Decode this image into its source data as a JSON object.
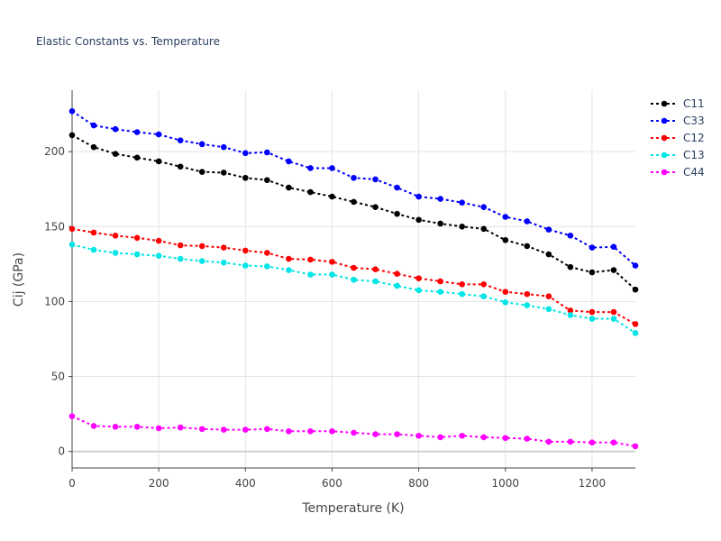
{
  "chart_data": {
    "type": "line",
    "title": "Elastic Constants vs. Temperature",
    "xlabel": "Temperature (K)",
    "ylabel": "Cij (GPa)",
    "xlim": [
      0,
      1300
    ],
    "ylim": [
      -11,
      241
    ],
    "xticks": [
      0,
      200,
      400,
      600,
      800,
      1000,
      1200
    ],
    "yticks": [
      0,
      50,
      100,
      150,
      200
    ],
    "grid": true,
    "legend_position": "top-right",
    "x": [
      0,
      50,
      100,
      150,
      200,
      250,
      300,
      350,
      400,
      450,
      500,
      550,
      600,
      650,
      700,
      750,
      800,
      850,
      900,
      950,
      1000,
      1050,
      1100,
      1150,
      1200,
      1250,
      1300
    ],
    "series": [
      {
        "name": "C11",
        "color": "#000000",
        "values": [
          211,
          203,
          198.5,
          196,
          193.5,
          190,
          186.5,
          186,
          182.5,
          181,
          176,
          173,
          170,
          166.5,
          163,
          158.5,
          154.5,
          152,
          150,
          148.5,
          141,
          137,
          131.5,
          123,
          119.5,
          121,
          108
        ]
      },
      {
        "name": "C33",
        "color": "#0000ff",
        "values": [
          227,
          217.5,
          215,
          213,
          211.5,
          207.5,
          205,
          203,
          199,
          199.5,
          193.5,
          189,
          189,
          182.5,
          181.5,
          176,
          170,
          168.5,
          166,
          163,
          156.5,
          153.5,
          148,
          144,
          136,
          136.5,
          124
        ]
      },
      {
        "name": "C12",
        "color": "#ff0000",
        "values": [
          148.5,
          146,
          144,
          142.5,
          140.5,
          137.5,
          137,
          136,
          134,
          132.5,
          128.5,
          128,
          126.5,
          122.5,
          121.5,
          118.5,
          115.5,
          113.5,
          111.5,
          111.5,
          106.5,
          105,
          103.5,
          94,
          93,
          93,
          85
        ]
      },
      {
        "name": "C13",
        "color": "#00e5e5",
        "values": [
          138,
          134.5,
          132.5,
          131.5,
          130.5,
          128.5,
          127,
          126,
          124,
          123.5,
          121,
          118,
          118,
          114.5,
          113.5,
          110.5,
          107.5,
          106.5,
          105,
          103.5,
          99.5,
          97.5,
          95,
          91,
          88.5,
          88.5,
          79
        ]
      },
      {
        "name": "C44",
        "color": "#ff00ff",
        "values": [
          23.5,
          17,
          16.5,
          16.5,
          15.5,
          16,
          15,
          14.5,
          14.5,
          15,
          13.5,
          13.5,
          13.5,
          12.5,
          11.5,
          11.5,
          10.5,
          9.5,
          10.5,
          9.5,
          9,
          8.5,
          6.5,
          6.5,
          6,
          6,
          3.5
        ]
      }
    ]
  }
}
